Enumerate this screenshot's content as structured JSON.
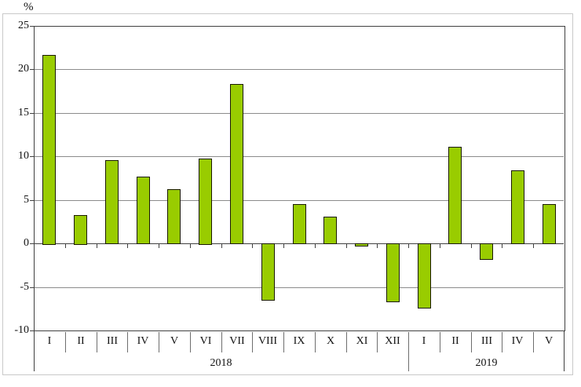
{
  "chart_data": {
    "type": "bar",
    "title": "",
    "ylabel": "%",
    "unit_label": "%",
    "ylim": [
      -10,
      25
    ],
    "ytick_interval": 5,
    "yticks": [
      25,
      20,
      15,
      10,
      5,
      0,
      -5,
      -10
    ],
    "grid": true,
    "legend_position": "none",
    "bar_color": "#99CC00",
    "bar_border_color": "#1a1a00",
    "grid_color": "#8c8c8c",
    "axis_color": "#404040",
    "separator_color": "#6e6e6e",
    "frame_color": "#c9c9c9",
    "categories": [
      "I",
      "II",
      "III",
      "IV",
      "V",
      "VI",
      "VII",
      "VIII",
      "IX",
      "X",
      "XI",
      "XII",
      "I",
      "II",
      "III",
      "IV",
      "V"
    ],
    "groups": [
      {
        "label": "2018",
        "start": 0,
        "count": 12
      },
      {
        "label": "2019",
        "start": 12,
        "count": 5
      }
    ],
    "values": [
      21.7,
      3.3,
      9.6,
      7.7,
      6.2,
      9.8,
      18.3,
      -6.5,
      4.5,
      3.1,
      -0.3,
      -6.7,
      -7.4,
      11.1,
      -1.8,
      8.4,
      4.5
    ]
  }
}
